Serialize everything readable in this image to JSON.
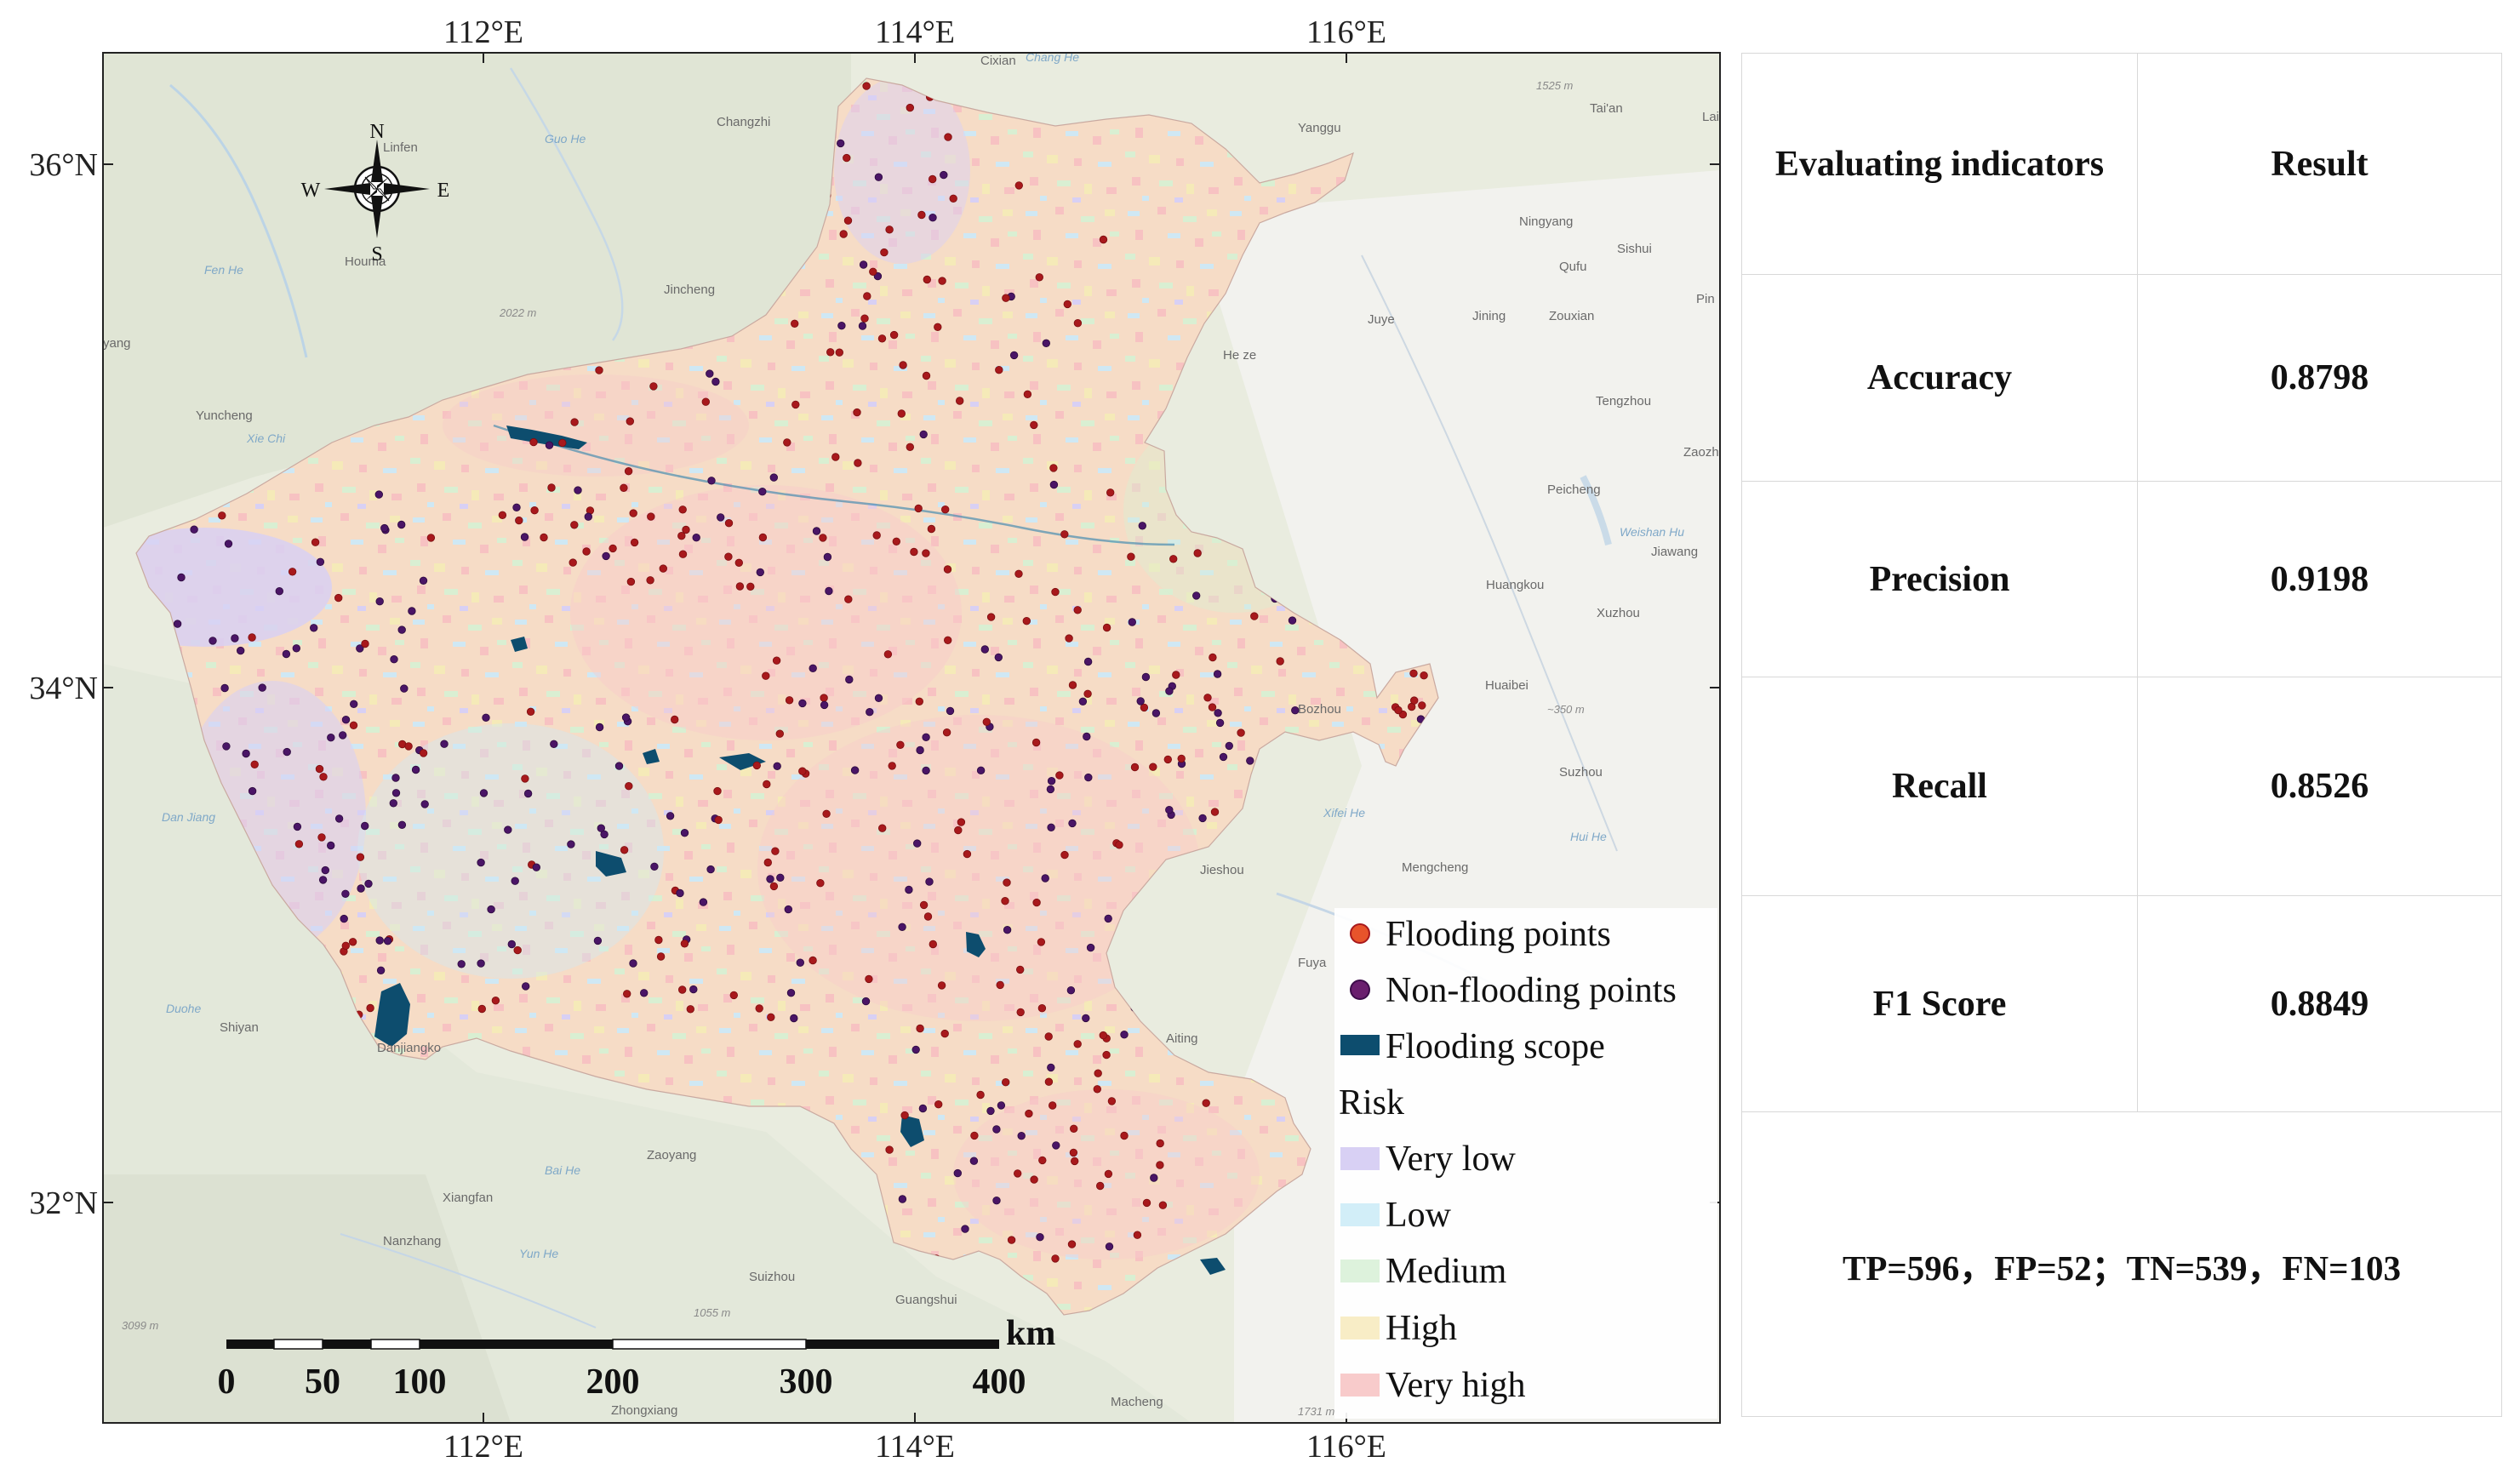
{
  "map": {
    "coord_labels": {
      "top": [
        "112°E",
        "114°E",
        "116°E"
      ],
      "bottom": [
        "112°E",
        "114°E",
        "116°E"
      ],
      "left": [
        "36°N",
        "34°N",
        "32°N"
      ]
    },
    "compass": {
      "n": "N",
      "s": "S",
      "e": "E",
      "w": "W"
    },
    "places": [
      "Linfen",
      "Changzhi",
      "Houma",
      "Jincheng",
      "Yuncheng",
      "Cixian",
      "Yanggu",
      "Tai'an",
      "Ningyang",
      "Sishui",
      "Qufu",
      "Juye",
      "Jining",
      "Zouxian",
      "He ze",
      "Tengzhou",
      "Peicheng",
      "Huangkou",
      "Xuzhou",
      "Huaibei",
      "Bozhou",
      "Suzhou",
      "Jieshou",
      "Mengcheng",
      "Fuya",
      "Shiyan",
      "Danjiangko",
      "Xiangfan",
      "Zaoyang",
      "Suizhou",
      "Guangshui",
      "Nanzhang",
      "Macheng",
      "Zhongxiang",
      "Aiting",
      "yang",
      "Pin",
      "Zaozh",
      "Jiawang",
      "Lai"
    ],
    "rivers": [
      "Fen He",
      "Xie Chi",
      "Dan Jiang",
      "Duohe",
      "Chang He",
      "Guo He",
      "Hui He",
      "Xifei He",
      "Bai He",
      "Yun He",
      "Weishan Hu"
    ],
    "elevations": [
      "2022 m",
      "1525 m",
      "~350 m",
      "1055 m",
      "1731 m",
      "3099 m"
    ],
    "scalebar": {
      "unit": "km",
      "ticks": [
        "0",
        "50",
        "100",
        "200",
        "300",
        "400"
      ]
    },
    "legend": {
      "flooding_points": "Flooding points",
      "non_flooding_points": "Non-flooding points",
      "flooding_scope": "Flooding scope",
      "risk_title": "Risk",
      "risk_classes": [
        {
          "label": "Very low",
          "color": "#d8d0f4"
        },
        {
          "label": "Low",
          "color": "#d2eef8"
        },
        {
          "label": "Medium",
          "color": "#ddf2dc"
        },
        {
          "label": "High",
          "color": "#f8edc6"
        },
        {
          "label": "Very high",
          "color": "#f8cbcb"
        }
      ],
      "colors": {
        "flooding": "#a8191c",
        "non_flooding": "#4a1566",
        "scope": "#0d4d6e"
      }
    }
  },
  "table": {
    "header": {
      "indicator": "Evaluating indicators",
      "result": "Result"
    },
    "rows": [
      {
        "indicator": "Accuracy",
        "result": "0.8798"
      },
      {
        "indicator": "Precision",
        "result": "0.9198"
      },
      {
        "indicator": "Recall",
        "result": "0.8526"
      },
      {
        "indicator": "F1 Score",
        "result": "0.8849"
      }
    ],
    "confusion": "TP=596，FP=52；TN=539，FN=103"
  }
}
